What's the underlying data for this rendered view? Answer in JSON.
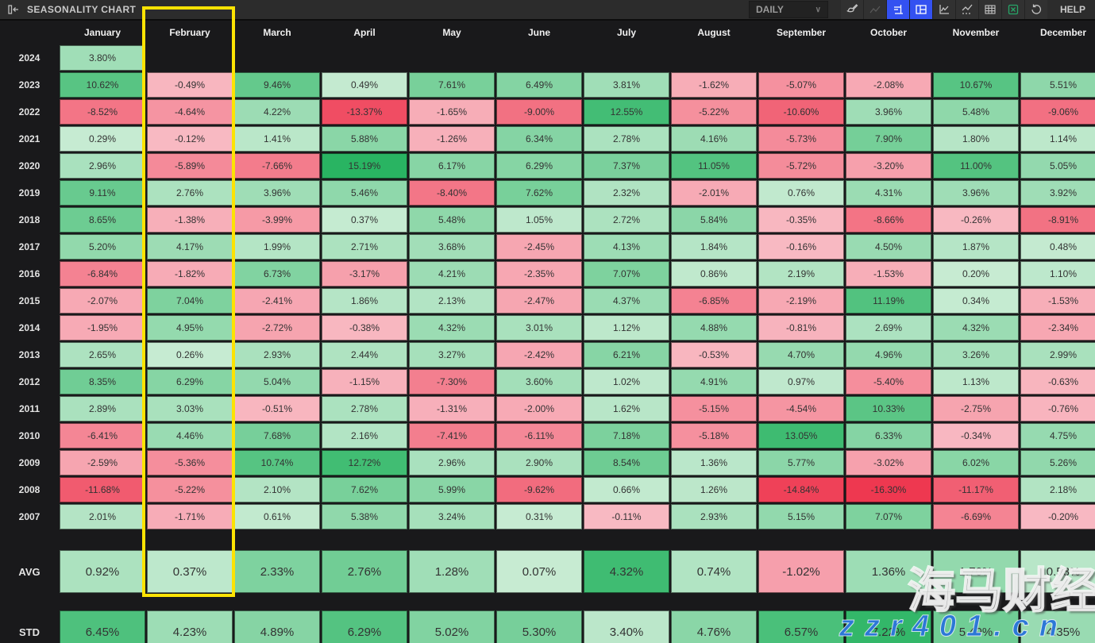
{
  "toolbar": {
    "title": "SEASONALITY CHART",
    "period": {
      "value": "DAILY"
    },
    "help_label": "HELP",
    "icons": [
      "collapse-panel",
      "brush",
      "trend-line",
      "scale-alignment",
      "layout-grid",
      "line-chart",
      "dotted-line-chart",
      "table",
      "excel-export",
      "reset"
    ],
    "active_icon_color": "#3351f1",
    "excel_icon_color": "#27a567"
  },
  "table": {
    "months": [
      "January",
      "February",
      "March",
      "April",
      "May",
      "June",
      "July",
      "August",
      "September",
      "October",
      "November",
      "December"
    ],
    "years": [
      {
        "label": "2024",
        "values": [
          "3.80%",
          "",
          "",
          "",
          "",
          "",
          "",
          "",
          "",
          "",
          "",
          ""
        ]
      },
      {
        "label": "2023",
        "values": [
          "10.62%",
          "-0.49%",
          "9.46%",
          "0.49%",
          "7.61%",
          "6.49%",
          "3.81%",
          "-1.62%",
          "-5.07%",
          "-2.08%",
          "10.67%",
          "5.51%"
        ]
      },
      {
        "label": "2022",
        "values": [
          "-8.52%",
          "-4.64%",
          "4.22%",
          "-13.37%",
          "-1.65%",
          "-9.00%",
          "12.55%",
          "-5.22%",
          "-10.60%",
          "3.96%",
          "5.48%",
          "-9.06%"
        ]
      },
      {
        "label": "2021",
        "values": [
          "0.29%",
          "-0.12%",
          "1.41%",
          "5.88%",
          "-1.26%",
          "6.34%",
          "2.78%",
          "4.16%",
          "-5.73%",
          "7.90%",
          "1.80%",
          "1.14%"
        ]
      },
      {
        "label": "2020",
        "values": [
          "2.96%",
          "-5.89%",
          "-7.66%",
          "15.19%",
          "6.17%",
          "6.29%",
          "7.37%",
          "11.05%",
          "-5.72%",
          "-3.20%",
          "11.00%",
          "5.05%"
        ]
      },
      {
        "label": "2019",
        "values": [
          "9.11%",
          "2.76%",
          "3.96%",
          "5.46%",
          "-8.40%",
          "7.62%",
          "2.32%",
          "-2.01%",
          "0.76%",
          "4.31%",
          "3.96%",
          "3.92%"
        ]
      },
      {
        "label": "2018",
        "values": [
          "8.65%",
          "-1.38%",
          "-3.99%",
          "0.37%",
          "5.48%",
          "1.05%",
          "2.72%",
          "5.84%",
          "-0.35%",
          "-8.66%",
          "-0.26%",
          "-8.91%"
        ]
      },
      {
        "label": "2017",
        "values": [
          "5.20%",
          "4.17%",
          "1.99%",
          "2.71%",
          "3.68%",
          "-2.45%",
          "4.13%",
          "1.84%",
          "-0.16%",
          "4.50%",
          "1.87%",
          "0.48%"
        ]
      },
      {
        "label": "2016",
        "values": [
          "-6.84%",
          "-1.82%",
          "6.73%",
          "-3.17%",
          "4.21%",
          "-2.35%",
          "7.07%",
          "0.86%",
          "2.19%",
          "-1.53%",
          "0.20%",
          "1.10%"
        ]
      },
      {
        "label": "2015",
        "values": [
          "-2.07%",
          "7.04%",
          "-2.41%",
          "1.86%",
          "2.13%",
          "-2.47%",
          "4.37%",
          "-6.85%",
          "-2.19%",
          "11.19%",
          "0.34%",
          "-1.53%"
        ]
      },
      {
        "label": "2014",
        "values": [
          "-1.95%",
          "4.95%",
          "-2.72%",
          "-0.38%",
          "4.32%",
          "3.01%",
          "1.12%",
          "4.88%",
          "-0.81%",
          "2.69%",
          "4.32%",
          "-2.34%"
        ]
      },
      {
        "label": "2013",
        "values": [
          "2.65%",
          "0.26%",
          "2.93%",
          "2.44%",
          "3.27%",
          "-2.42%",
          "6.21%",
          "-0.53%",
          "4.70%",
          "4.96%",
          "3.26%",
          "2.99%"
        ]
      },
      {
        "label": "2012",
        "values": [
          "8.35%",
          "6.29%",
          "5.04%",
          "-1.15%",
          "-7.30%",
          "3.60%",
          "1.02%",
          "4.91%",
          "0.97%",
          "-5.40%",
          "1.13%",
          "-0.63%"
        ]
      },
      {
        "label": "2011",
        "values": [
          "2.89%",
          "3.03%",
          "-0.51%",
          "2.78%",
          "-1.31%",
          "-2.00%",
          "1.62%",
          "-5.15%",
          "-4.54%",
          "10.33%",
          "-2.75%",
          "-0.76%"
        ]
      },
      {
        "label": "2010",
        "values": [
          "-6.41%",
          "4.46%",
          "7.68%",
          "2.16%",
          "-7.41%",
          "-6.11%",
          "7.18%",
          "-5.18%",
          "13.05%",
          "6.33%",
          "-0.34%",
          "4.75%"
        ]
      },
      {
        "label": "2009",
        "values": [
          "-2.59%",
          "-5.36%",
          "10.74%",
          "12.72%",
          "2.96%",
          "2.90%",
          "8.54%",
          "1.36%",
          "5.77%",
          "-3.02%",
          "6.02%",
          "5.26%"
        ]
      },
      {
        "label": "2008",
        "values": [
          "-11.68%",
          "-5.22%",
          "2.10%",
          "7.62%",
          "5.99%",
          "-9.62%",
          "0.66%",
          "1.26%",
          "-14.84%",
          "-16.30%",
          "-11.17%",
          "2.18%"
        ]
      },
      {
        "label": "2007",
        "values": [
          "2.01%",
          "-1.71%",
          "0.61%",
          "5.38%",
          "3.24%",
          "0.31%",
          "-0.11%",
          "2.93%",
          "5.15%",
          "7.07%",
          "-6.69%",
          "-0.20%"
        ]
      }
    ],
    "summary": [
      {
        "label": "AVG",
        "values": [
          "0.92%",
          "0.37%",
          "2.33%",
          "2.76%",
          "1.28%",
          "0.07%",
          "4.32%",
          "0.74%",
          "-1.02%",
          "1.36%",
          "1.70%",
          "0.53%"
        ]
      },
      {
        "label": "STD",
        "values": [
          "6.45%",
          "4.23%",
          "4.89%",
          "6.29%",
          "5.02%",
          "5.30%",
          "3.40%",
          "4.76%",
          "6.57%",
          "7.22%",
          "5.49%",
          "4.35%"
        ]
      }
    ]
  },
  "highlight": {
    "column": "February",
    "border_color": "#fce303"
  },
  "watermark": {
    "line1": "海马财经",
    "line2": "zzr401.cn",
    "line2_color": "#2c78d6"
  },
  "colors": {
    "background": "#19191b",
    "toolbar_bg": "#2c2c2c",
    "positive_strong": "#29b462",
    "positive_light": "#c9ecd4",
    "negative_strong": "#ee3850",
    "negative_light": "#f8bac3"
  }
}
